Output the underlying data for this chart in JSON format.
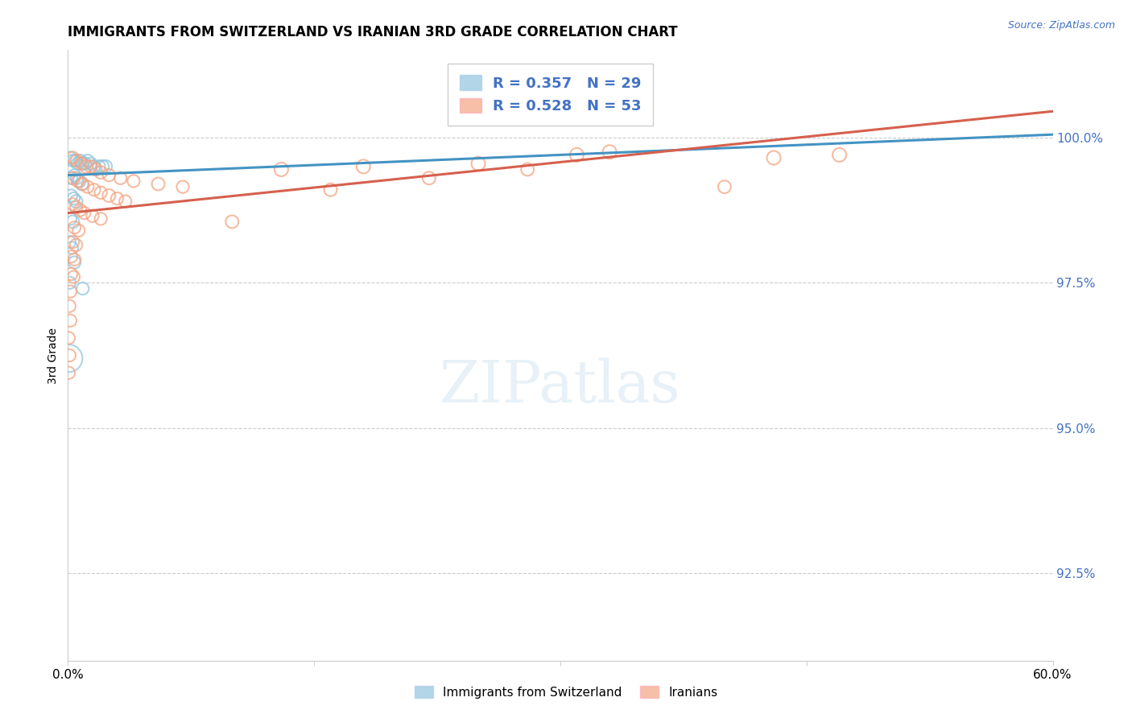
{
  "title": "IMMIGRANTS FROM SWITZERLAND VS IRANIAN 3RD GRADE CORRELATION CHART",
  "source": "Source: ZipAtlas.com",
  "ylabel": "3rd Grade",
  "y_ticks": [
    92.5,
    95.0,
    97.5,
    100.0
  ],
  "y_tick_labels": [
    "92.5%",
    "95.0%",
    "97.5%",
    "100.0%"
  ],
  "x_range": [
    0.0,
    60.0
  ],
  "y_range": [
    91.0,
    101.5
  ],
  "legend_label_blue": "Immigrants from Switzerland",
  "legend_label_pink": "Iranians",
  "blue_color": "#92c5de",
  "pink_color": "#f4a582",
  "blue_line_color": "#4393c3",
  "pink_line_color": "#d6604d",
  "swiss_points": [
    [
      0.15,
      99.65
    ],
    [
      0.3,
      99.6
    ],
    [
      0.45,
      99.6
    ],
    [
      0.6,
      99.55
    ],
    [
      0.75,
      99.6
    ],
    [
      0.9,
      99.55
    ],
    [
      1.05,
      99.55
    ],
    [
      1.2,
      99.6
    ],
    [
      1.4,
      99.55
    ],
    [
      1.6,
      99.5
    ],
    [
      1.9,
      99.5
    ],
    [
      2.1,
      99.5
    ],
    [
      2.3,
      99.5
    ],
    [
      0.2,
      99.3
    ],
    [
      0.4,
      99.35
    ],
    [
      0.55,
      99.3
    ],
    [
      0.7,
      99.25
    ],
    [
      0.85,
      99.2
    ],
    [
      0.2,
      99.0
    ],
    [
      0.35,
      98.95
    ],
    [
      0.5,
      98.9
    ],
    [
      0.15,
      98.6
    ],
    [
      0.3,
      98.55
    ],
    [
      0.1,
      98.2
    ],
    [
      0.25,
      98.1
    ],
    [
      0.4,
      97.85
    ],
    [
      0.1,
      97.5
    ],
    [
      0.9,
      97.4
    ],
    [
      0.05,
      96.2
    ]
  ],
  "swiss_sizes": [
    120,
    120,
    120,
    120,
    120,
    120,
    120,
    120,
    120,
    120,
    120,
    130,
    130,
    120,
    120,
    120,
    130,
    130,
    120,
    120,
    130,
    120,
    130,
    120,
    120,
    120,
    120,
    120,
    600
  ],
  "iranian_points": [
    [
      0.3,
      99.65
    ],
    [
      0.55,
      99.6
    ],
    [
      0.8,
      99.55
    ],
    [
      1.1,
      99.5
    ],
    [
      1.4,
      99.5
    ],
    [
      1.7,
      99.45
    ],
    [
      2.0,
      99.4
    ],
    [
      2.5,
      99.35
    ],
    [
      3.2,
      99.3
    ],
    [
      4.0,
      99.25
    ],
    [
      5.5,
      99.2
    ],
    [
      7.0,
      99.15
    ],
    [
      0.35,
      99.3
    ],
    [
      0.6,
      99.25
    ],
    [
      0.9,
      99.2
    ],
    [
      1.2,
      99.15
    ],
    [
      1.6,
      99.1
    ],
    [
      2.0,
      99.05
    ],
    [
      2.5,
      99.0
    ],
    [
      3.0,
      98.95
    ],
    [
      3.5,
      98.9
    ],
    [
      0.3,
      98.85
    ],
    [
      0.5,
      98.8
    ],
    [
      0.75,
      98.75
    ],
    [
      1.0,
      98.7
    ],
    [
      1.5,
      98.65
    ],
    [
      2.0,
      98.6
    ],
    [
      0.4,
      98.45
    ],
    [
      0.65,
      98.4
    ],
    [
      0.3,
      98.2
    ],
    [
      0.5,
      98.15
    ],
    [
      0.2,
      97.95
    ],
    [
      0.4,
      97.9
    ],
    [
      0.2,
      97.65
    ],
    [
      0.35,
      97.6
    ],
    [
      0.15,
      97.35
    ],
    [
      0.1,
      97.1
    ],
    [
      0.15,
      96.85
    ],
    [
      0.05,
      96.55
    ],
    [
      0.1,
      96.25
    ],
    [
      0.05,
      95.95
    ],
    [
      13.0,
      99.45
    ],
    [
      18.0,
      99.5
    ],
    [
      25.0,
      99.55
    ],
    [
      31.0,
      99.7
    ],
    [
      33.0,
      99.75
    ],
    [
      43.0,
      99.65
    ],
    [
      47.0,
      99.7
    ],
    [
      10.0,
      98.55
    ],
    [
      16.0,
      99.1
    ],
    [
      22.0,
      99.3
    ],
    [
      28.0,
      99.45
    ],
    [
      40.0,
      99.15
    ]
  ],
  "iranian_sizes": [
    120,
    120,
    120,
    130,
    120,
    120,
    130,
    120,
    120,
    120,
    130,
    120,
    130,
    120,
    120,
    120,
    120,
    120,
    130,
    120,
    120,
    120,
    120,
    120,
    120,
    120,
    120,
    120,
    120,
    120,
    120,
    120,
    120,
    120,
    120,
    120,
    120,
    120,
    120,
    120,
    120,
    150,
    150,
    150,
    150,
    150,
    150,
    150,
    130,
    130,
    130,
    130,
    130
  ],
  "blue_line_x": [
    0.0,
    60.0
  ],
  "blue_line_y": [
    99.35,
    100.05
  ],
  "pink_line_x": [
    0.0,
    60.0
  ],
  "pink_line_y": [
    98.7,
    100.45
  ]
}
